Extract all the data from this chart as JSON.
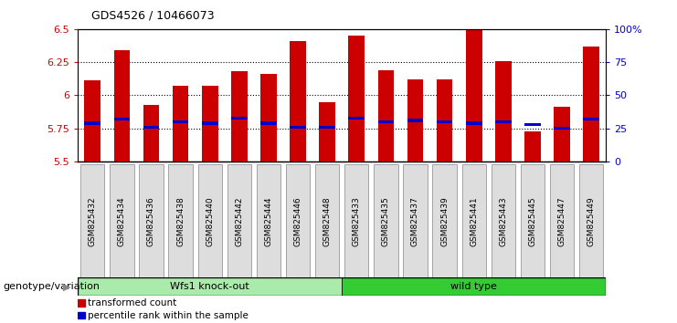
{
  "title": "GDS4526 / 10466073",
  "samples": [
    "GSM825432",
    "GSM825434",
    "GSM825436",
    "GSM825438",
    "GSM825440",
    "GSM825442",
    "GSM825444",
    "GSM825446",
    "GSM825448",
    "GSM825433",
    "GSM825435",
    "GSM825437",
    "GSM825439",
    "GSM825441",
    "GSM825443",
    "GSM825445",
    "GSM825447",
    "GSM825449"
  ],
  "transformed_counts": [
    6.11,
    6.34,
    5.93,
    6.07,
    6.07,
    6.18,
    6.16,
    6.41,
    5.95,
    6.45,
    6.19,
    6.12,
    6.12,
    6.49,
    6.26,
    5.73,
    5.91,
    6.37
  ],
  "percentile_values": [
    5.79,
    5.82,
    5.76,
    5.8,
    5.79,
    5.83,
    5.79,
    5.76,
    5.76,
    5.83,
    5.8,
    5.81,
    5.8,
    5.79,
    5.8,
    5.78,
    5.75,
    5.82
  ],
  "bar_bottom": 5.5,
  "ylim": [
    5.5,
    6.5
  ],
  "y_ticks": [
    5.5,
    5.75,
    6.0,
    6.25,
    6.5
  ],
  "y_tick_labels": [
    "5.5",
    "5.75",
    "6",
    "6.25",
    "6.5"
  ],
  "right_yticks": [
    0,
    25,
    50,
    75,
    100
  ],
  "right_ytick_labels": [
    "0",
    "25",
    "50",
    "75",
    "100%"
  ],
  "bar_color": "#cc0000",
  "percentile_color": "#0000cc",
  "grid_color": "#000000",
  "groups": [
    {
      "label": "Wfs1 knock-out",
      "start": 0,
      "end": 9,
      "color": "#aaeaaa"
    },
    {
      "label": "wild type",
      "start": 9,
      "end": 18,
      "color": "#33cc33"
    }
  ],
  "group_label_prefix": "genotype/variation",
  "legend_items": [
    {
      "label": "transformed count",
      "color": "#cc0000"
    },
    {
      "label": "percentile rank within the sample",
      "color": "#0000cc"
    }
  ],
  "ylabel_left_color": "#cc0000",
  "ylabel_right_color": "#0000cc",
  "bg_color": "#ffffff",
  "plot_bg_color": "#ffffff",
  "tick_label_bg": "#dddddd"
}
